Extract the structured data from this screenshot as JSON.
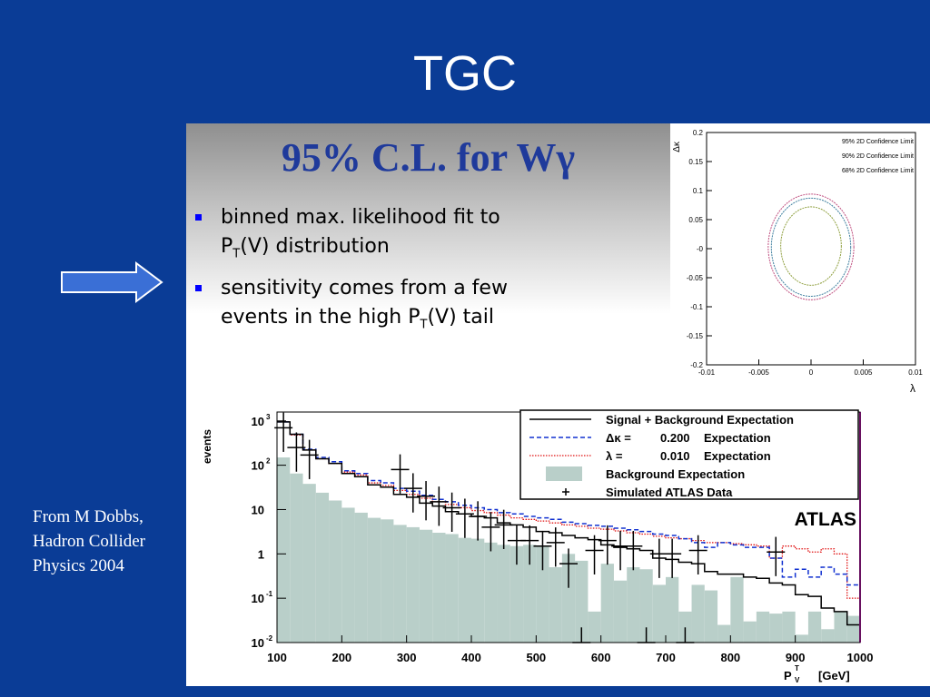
{
  "slide": {
    "title": "TGC",
    "colors": {
      "background": "#0a3c96",
      "panel_title": "#1f3a9b",
      "bullet": "#0000ff"
    }
  },
  "panel": {
    "title": "95% C.L. for Wγ",
    "bullets": [
      {
        "pre": "binned max. likelihood fit to ",
        "br": "P",
        "sub": "T",
        "post": "(V) distribution"
      },
      {
        "pre": "sensitivity comes from a few ",
        "br": "events in the high P",
        "sub": "T",
        "post": "(V) tail"
      }
    ]
  },
  "arrow_icon": "right-arrow-icon",
  "credit": [
    "From M Dobbs,",
    "Hadron Collider",
    "Physics 2004"
  ],
  "chart_data": [
    {
      "type": "contour",
      "xlabel": "λ",
      "ylabel": "Δκ",
      "xlim": [
        -0.01,
        0.01
      ],
      "ylim": [
        -0.2,
        0.2
      ],
      "x_ticks": [
        "-0.01",
        "-0.005",
        "0",
        "0.005",
        "0.01"
      ],
      "y_ticks": [
        "0.2",
        "0.15",
        "0.1",
        "0.05",
        "-0",
        "-0.05",
        "-0.1",
        "-0.15",
        "-0.2"
      ],
      "legend": [
        "95% 2D Confidence Limit",
        "90% 2D Confidence Limit",
        "68% 2D Confidence Limit"
      ],
      "legend_position": "top-right",
      "series": [
        {
          "name": "95% 2D Confidence Limit",
          "color": "#c05080",
          "x_halfwidth": 0.0041,
          "y_up": 0.094,
          "y_down": -0.088
        },
        {
          "name": "90% 2D Confidence Limit",
          "color": "#4080a0",
          "x_halfwidth": 0.0038,
          "y_up": 0.087,
          "y_down": -0.082
        },
        {
          "name": "68% 2D Confidence Limit",
          "color": "#90a040",
          "x_halfwidth": 0.0029,
          "y_up": 0.072,
          "y_down": -0.063
        }
      ]
    },
    {
      "type": "histogram",
      "ylabel": "events",
      "xlabel": "P",
      "xlabel_sup": "T",
      "xlabel_sub": "V",
      "xlabel_unit": "[GeV]",
      "annotation": "ATLAS",
      "xlim": [
        100,
        1000
      ],
      "y_log_range": [
        -2,
        3.2
      ],
      "x_ticks": [
        "100",
        "200",
        "300",
        "400",
        "500",
        "600",
        "700",
        "800",
        "900",
        "1000"
      ],
      "y_ticks": [
        {
          "base": "10",
          "exp": "3"
        },
        {
          "base": "10",
          "exp": "2"
        },
        {
          "base": "10",
          "exp": ""
        },
        {
          "base": "1",
          "exp": ""
        },
        {
          "base": "10",
          "exp": "-1"
        },
        {
          "base": "10",
          "exp": "-2"
        }
      ],
      "legend_position": "top-right",
      "legend": [
        {
          "label": "Signal + Background Expectation",
          "style": "solid"
        },
        {
          "sym": "Δκ =",
          "val": "0.200",
          "text": "Expectation",
          "style": "dashed"
        },
        {
          "sym": "λ =",
          "val": "0.010",
          "text": "Expectation",
          "style": "dotted"
        },
        {
          "label": "Background Expectation",
          "style": "fill"
        },
        {
          "label": "Simulated ATLAS Data",
          "style": "marker"
        }
      ],
      "bin_edges_start": 100,
      "bin_width": 20,
      "background": [
        150,
        65,
        38,
        24,
        16,
        11,
        8.5,
        6.5,
        6,
        4.5,
        4,
        3.5,
        3,
        2.8,
        2.3,
        2.2,
        1.8,
        1.6,
        1.5,
        1.6,
        1.5,
        0.5,
        1.0,
        0.7,
        0.05,
        0.6,
        0.25,
        0.5,
        0.45,
        0.2,
        0.3,
        0.05,
        0.2,
        0.15,
        0.025,
        0.3,
        0.03,
        0.05,
        0.045,
        0.05,
        0.015,
        0.05,
        0.02,
        0.05,
        0.04
      ],
      "signal_bg": [
        950,
        500,
        220,
        140,
        110,
        65,
        55,
        36,
        32,
        22,
        19,
        14,
        12,
        9,
        8,
        7,
        6.5,
        5,
        4.5,
        4,
        3.2,
        3,
        2.6,
        2.3,
        2.1,
        1.6,
        1.4,
        1.3,
        1.2,
        0.8,
        0.75,
        0.65,
        0.6,
        0.4,
        0.35,
        0.35,
        0.3,
        0.28,
        0.22,
        0.2,
        0.12,
        0.11,
        0.06,
        0.05,
        0.025
      ],
      "dk_exp": [
        950,
        500,
        230,
        150,
        120,
        75,
        65,
        45,
        40,
        30,
        26,
        21,
        17,
        15,
        12.5,
        11,
        10,
        8.5,
        8,
        7,
        6.5,
        6,
        5.2,
        4.8,
        4.4,
        4.2,
        3.8,
        3.5,
        3.2,
        2.8,
        2.6,
        2.2,
        1.8,
        1.4,
        1.8,
        1.6,
        1.4,
        1.4,
        0.8,
        0.3,
        0.45,
        0.3,
        0.5,
        0.35,
        0.2
      ],
      "lam_exp": [
        950,
        480,
        220,
        140,
        110,
        70,
        60,
        40,
        35,
        27,
        22,
        18,
        15,
        13,
        11,
        9.5,
        8.5,
        7.5,
        6.5,
        6,
        5.5,
        5,
        4.5,
        4.2,
        3.8,
        3.6,
        3.3,
        3,
        2.8,
        2.5,
        2.3,
        2.2,
        2,
        1.8,
        1.8,
        1.7,
        1.6,
        1.5,
        0.8,
        1.5,
        1.3,
        1.1,
        1.3,
        1.0,
        0.1
      ],
      "data": [
        {
          "x": 110,
          "y": 700
        },
        {
          "x": 130,
          "y": 250
        },
        {
          "x": 150,
          "y": 170
        },
        {
          "x": 290,
          "y": 80
        },
        {
          "x": 310,
          "y": 30
        },
        {
          "x": 330,
          "y": 20
        },
        {
          "x": 350,
          "y": 15
        },
        {
          "x": 370,
          "y": 11
        },
        {
          "x": 390,
          "y": 8
        },
        {
          "x": 410,
          "y": 7
        },
        {
          "x": 430,
          "y": 4
        },
        {
          "x": 450,
          "y": 4.5
        },
        {
          "x": 470,
          "y": 2
        },
        {
          "x": 490,
          "y": 2
        },
        {
          "x": 510,
          "y": 1.5
        },
        {
          "x": 530,
          "y": 1.8
        },
        {
          "x": 550,
          "y": 0.6
        },
        {
          "x": 570,
          "y": 0.01
        },
        {
          "x": 590,
          "y": 1.2
        },
        {
          "x": 610,
          "y": 2
        },
        {
          "x": 630,
          "y": 1.5
        },
        {
          "x": 650,
          "y": 1.5
        },
        {
          "x": 670,
          "y": 0.01
        },
        {
          "x": 690,
          "y": 1
        },
        {
          "x": 710,
          "y": 1
        },
        {
          "x": 730,
          "y": 0.01
        },
        {
          "x": 750,
          "y": 1.2
        },
        {
          "x": 870,
          "y": 1.1
        }
      ]
    }
  ]
}
